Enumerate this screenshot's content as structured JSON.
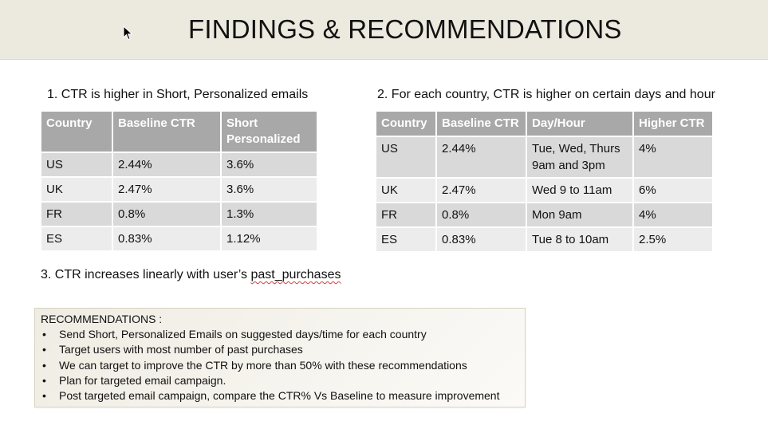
{
  "title": "FINDINGS & RECOMMENDATIONS",
  "finding1": {
    "heading": "1. CTR is higher in Short, Personalized emails",
    "columns": [
      "Country",
      "Baseline CTR",
      "Short Personalized"
    ],
    "rows": [
      [
        "US",
        "2.44%",
        "3.6%"
      ],
      [
        "UK",
        "2.47%",
        "3.6%"
      ],
      [
        "FR",
        "0.8%",
        "1.3%"
      ],
      [
        "ES",
        "0.83%",
        "1.12%"
      ]
    ]
  },
  "finding2": {
    "heading": "2. For each country, CTR is higher on certain days and hour",
    "columns": [
      "Country",
      "Baseline CTR",
      "Day/Hour",
      "Higher CTR"
    ],
    "rows": [
      [
        "US",
        "2.44%",
        "Tue, Wed, Thurs 9am and 3pm",
        "4%"
      ],
      [
        "UK",
        "2.47%",
        "Wed 9 to 11am",
        "6%"
      ],
      [
        "FR",
        "0.8%",
        "Mon 9am",
        "4%"
      ],
      [
        "ES",
        "0.83%",
        "Tue 8 to 10am",
        "2.5%"
      ]
    ]
  },
  "finding3": {
    "heading_prefix": "3. CTR increases linearly with user’s ",
    "heading_term": "past_purchases"
  },
  "recommendations": {
    "title": "RECOMMENDATIONS :",
    "bullet": "•",
    "items": [
      "Send Short, Personalized Emails on suggested days/time for each country",
      "Target users with most number of past purchases",
      "We can target to improve the CTR by more than 50% with these recommendations",
      "Plan for targeted email campaign.",
      "Post targeted email campaign, compare the CTR% Vs Baseline to measure improvement"
    ]
  },
  "colors": {
    "title_band": "#ece9df",
    "table_header": "#a8a8a8",
    "row_dark": "#d9d9d9",
    "row_light": "#ececec"
  }
}
